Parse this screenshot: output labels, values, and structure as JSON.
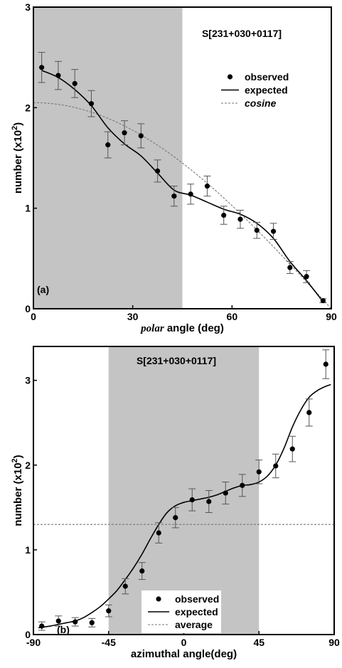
{
  "chart_data": [
    {
      "type": "scatter",
      "panel_label": "(a)",
      "title": "S[231+030+0117]",
      "xlabel_italic": "polar",
      "xlabel_rest": " angle (deg)",
      "ylabel": "number (x10",
      "ylabel_sup": "2",
      "ylabel_close": ")",
      "xlim": [
        0,
        90
      ],
      "ylim": [
        0,
        3
      ],
      "xticks": [
        "0",
        "30",
        "60",
        "90"
      ],
      "yticks": [
        "0",
        "1",
        "2",
        "3"
      ],
      "shaded_x": [
        0,
        45
      ],
      "legend_position": "top-right",
      "legend": {
        "observed": "observed",
        "expected": "expected",
        "reference": "cosine",
        "reference_italic": true
      },
      "series": [
        {
          "name": "observed",
          "style": "points_with_error_bars",
          "x": [
            2.5,
            7.5,
            12.5,
            17.5,
            22.5,
            27.5,
            32.5,
            37.5,
            42.5,
            47.5,
            52.5,
            57.5,
            62.5,
            67.5,
            72.5,
            77.5,
            82.5,
            87.5
          ],
          "y": [
            2.4,
            2.32,
            2.24,
            2.04,
            1.63,
            1.75,
            1.72,
            1.37,
            1.12,
            1.14,
            1.22,
            0.93,
            0.89,
            0.78,
            0.77,
            0.41,
            0.32,
            0.08
          ],
          "err": [
            0.15,
            0.14,
            0.14,
            0.13,
            0.13,
            0.12,
            0.12,
            0.11,
            0.1,
            0.1,
            0.1,
            0.09,
            0.09,
            0.08,
            0.08,
            0.06,
            0.06,
            0.02
          ]
        },
        {
          "name": "expected",
          "style": "solid_line",
          "x": [
            2.5,
            7.5,
            12.5,
            17.5,
            22.5,
            27.5,
            32.5,
            37.5,
            42.5,
            47.5,
            52.5,
            57.5,
            62.5,
            67.5,
            72.5,
            77.5,
            82.5,
            87.5
          ],
          "y": [
            2.37,
            2.3,
            2.18,
            2.02,
            1.8,
            1.64,
            1.52,
            1.35,
            1.18,
            1.13,
            1.06,
            0.99,
            0.94,
            0.85,
            0.7,
            0.47,
            0.28,
            0.07
          ]
        },
        {
          "name": "cosine",
          "style": "dashed_line",
          "formula": "2.05*cos(x)",
          "amplitude": 2.05
        }
      ]
    },
    {
      "type": "scatter",
      "panel_label": "(b)",
      "title": "S[231+030+0117]",
      "xlabel": "azimuthal angle(deg)",
      "ylabel": "number (x10",
      "ylabel_sup": "2",
      "ylabel_close": ")",
      "xlim": [
        -90,
        90
      ],
      "ylim": [
        0,
        3.4
      ],
      "xticks": [
        "-90",
        "-45",
        "0",
        "45",
        "90"
      ],
      "yticks": [
        "0",
        "1",
        "2",
        "3"
      ],
      "shaded_x": [
        -45,
        45
      ],
      "legend_position": "bottom-left",
      "legend": {
        "observed": "observed",
        "expected": "expected",
        "reference": "average",
        "reference_italic": false
      },
      "series": [
        {
          "name": "observed",
          "style": "points_with_error_bars",
          "x": [
            -85,
            -75,
            -65,
            -55,
            -45,
            -35,
            -25,
            -15,
            -5,
            5,
            15,
            25,
            35,
            45,
            55,
            65,
            75,
            85
          ],
          "y": [
            0.1,
            0.16,
            0.15,
            0.14,
            0.28,
            0.57,
            0.75,
            1.2,
            1.38,
            1.59,
            1.57,
            1.67,
            1.76,
            1.92,
            1.99,
            2.19,
            2.62,
            3.19
          ],
          "err": [
            0.05,
            0.06,
            0.05,
            0.05,
            0.07,
            0.09,
            0.1,
            0.12,
            0.12,
            0.13,
            0.13,
            0.13,
            0.13,
            0.14,
            0.14,
            0.15,
            0.16,
            0.17
          ]
        },
        {
          "name": "expected",
          "style": "solid_line",
          "x": [
            -87,
            -80,
            -75,
            -70,
            -65,
            -60,
            -55,
            -50,
            -45,
            -40,
            -35,
            -30,
            -25,
            -20,
            -15,
            -10,
            -5,
            0,
            5,
            10,
            15,
            20,
            25,
            30,
            35,
            40,
            45,
            50,
            55,
            60,
            65,
            70,
            75,
            80,
            85,
            88
          ],
          "y": [
            0.08,
            0.1,
            0.12,
            0.14,
            0.16,
            0.2,
            0.26,
            0.33,
            0.42,
            0.52,
            0.65,
            0.79,
            0.95,
            1.13,
            1.3,
            1.44,
            1.52,
            1.56,
            1.58,
            1.6,
            1.62,
            1.65,
            1.69,
            1.73,
            1.76,
            1.77,
            1.8,
            1.87,
            2.0,
            2.2,
            2.45,
            2.65,
            2.8,
            2.88,
            2.93,
            2.95
          ]
        },
        {
          "name": "average",
          "style": "dashed_line",
          "constant": 1.3
        }
      ]
    }
  ]
}
